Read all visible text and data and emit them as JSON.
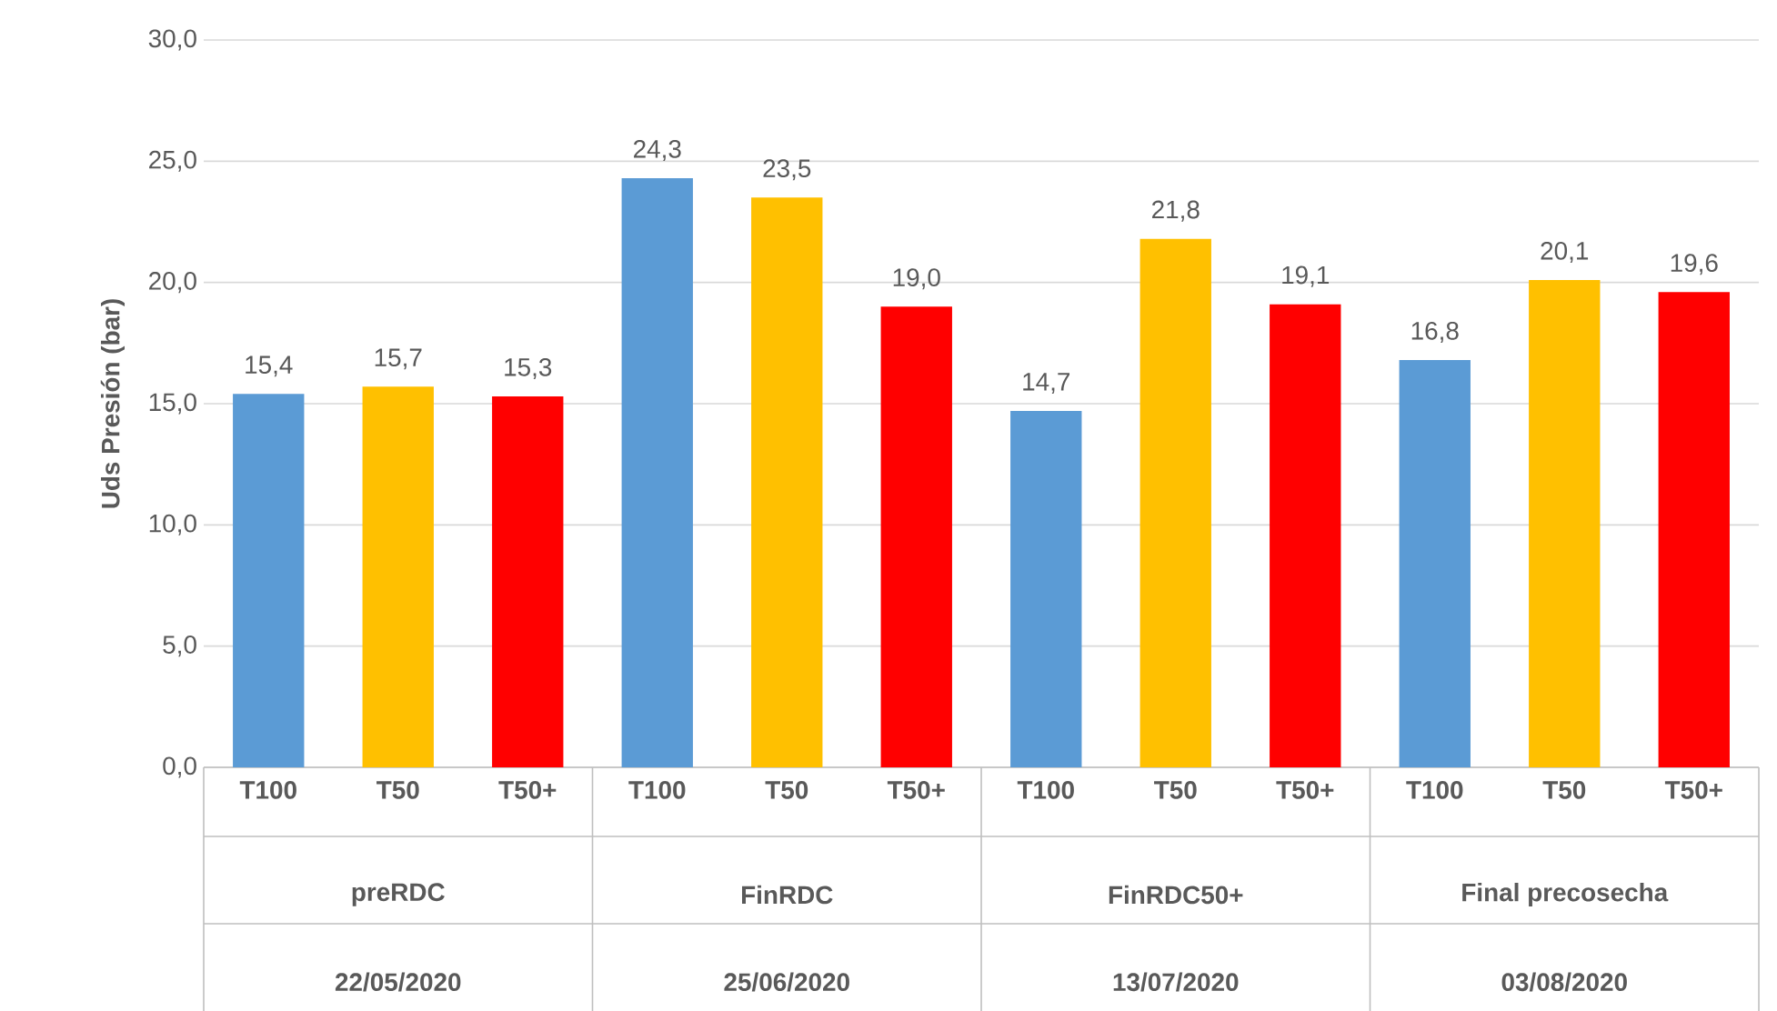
{
  "chart_data": {
    "type": "bar",
    "ylabel": "Uds Presión (bar)",
    "categories": [
      "T100",
      "T50",
      "T50+",
      "T100",
      "T50",
      "T50+",
      "T100",
      "T50",
      "T50+",
      "T100",
      "T50",
      "T50+"
    ],
    "values": [
      15.4,
      15.7,
      15.3,
      24.3,
      23.5,
      19.0,
      14.7,
      21.8,
      19.1,
      16.8,
      20.1,
      19.6
    ],
    "colors": [
      "#5b9bd5",
      "#ffc000",
      "#ff0000",
      "#5b9bd5",
      "#ffc000",
      "#ff0000",
      "#5b9bd5",
      "#ffc000",
      "#ff0000",
      "#5b9bd5",
      "#ffc000",
      "#ff0000"
    ],
    "value_labels": [
      "15,4",
      "15,7",
      "15,3",
      "24,3",
      "23,5",
      "19,0",
      "14,7",
      "21,8",
      "19,1",
      "16,8",
      "20,1",
      "19,6"
    ],
    "ylim": [
      0,
      30
    ],
    "yticks": [
      {
        "value": 0,
        "label": "0,0"
      },
      {
        "value": 5,
        "label": "5,0"
      },
      {
        "value": 10,
        "label": "10,0"
      },
      {
        "value": 15,
        "label": "15,0"
      },
      {
        "value": 20,
        "label": "20,0"
      },
      {
        "value": 25,
        "label": "25,0"
      },
      {
        "value": 30,
        "label": "30,0"
      }
    ],
    "grid": "y",
    "annotations": [
      "preRDC",
      "FinRDC",
      "FinRDC50+",
      "Final precosecha",
      "22/05/2020",
      "25/06/2020",
      "13/07/2020",
      "03/08/2020"
    ]
  }
}
